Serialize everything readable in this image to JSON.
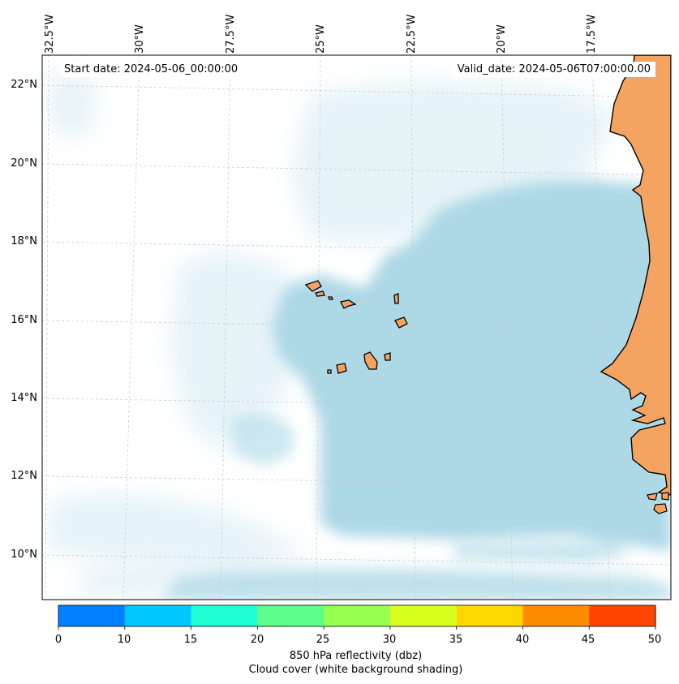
{
  "header": {
    "start_date": "Start date: 2024-05-06_00:00:00",
    "valid_date": "Valid_date: 2024-05-06T07:00:00.00"
  },
  "map": {
    "longitude_labels": [
      "32.5°W",
      "30°W",
      "27.5°W",
      "25°W",
      "22.5°W",
      "20°W",
      "17.5°W"
    ],
    "latitude_labels": [
      "22°N",
      "20°N",
      "18°N",
      "16°N",
      "14°N",
      "12°N",
      "10°N"
    ],
    "colors": {
      "ocean_background": "#ffffff",
      "cloud_shading": "#add8e6",
      "land": "#f4a460",
      "coastline": "#000000",
      "gridlines": "#cccccc"
    }
  },
  "colorbar": {
    "tick_labels": [
      "0",
      "10",
      "15",
      "20",
      "25",
      "30",
      "35",
      "40",
      "45",
      "50"
    ],
    "colors": [
      "#0080ff",
      "#00c8ff",
      "#1effd4",
      "#5cff8c",
      "#96ff50",
      "#d8ff1e",
      "#ffd700",
      "#ff8c00",
      "#ff4500"
    ],
    "label": "850 hPa reflectivity (dbz)",
    "sublabel": "Cloud cover (white background shading)"
  }
}
